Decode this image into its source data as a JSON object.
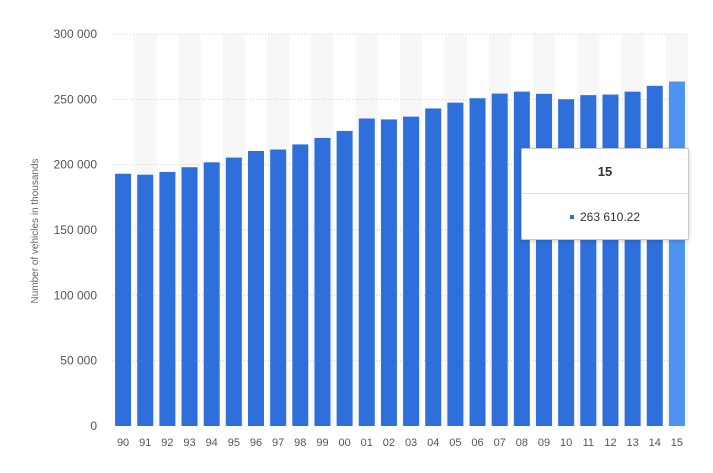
{
  "chart_data": {
    "type": "bar",
    "title": "",
    "xlabel": "",
    "ylabel": "Number of vehicles in thousands",
    "categories": [
      "90",
      "91",
      "92",
      "93",
      "94",
      "95",
      "96",
      "97",
      "98",
      "99",
      "00",
      "01",
      "02",
      "03",
      "04",
      "05",
      "06",
      "07",
      "08",
      "09",
      "10",
      "11",
      "12",
      "13",
      "14",
      "15"
    ],
    "values": [
      193057,
      192314,
      194427,
      198045,
      201802,
      205427,
      210441,
      211580,
      215497,
      220461,
      225821,
      235331,
      234624,
      236760,
      243023,
      247421,
      250845,
      254403,
      255918,
      254213,
      250070,
      253216,
      253639,
      255876,
      260351,
      263610.22
    ],
    "ylim": [
      0,
      300000
    ],
    "yticks": [
      0,
      50000,
      100000,
      150000,
      200000,
      250000,
      300000
    ],
    "ytick_labels": [
      "0",
      "50 000",
      "100 000",
      "150 000",
      "200 000",
      "250 000",
      "300 000"
    ],
    "grid": true,
    "bar_color": "#2f6fdc",
    "highlight_color": "#4c93f2",
    "highlight_index": 25,
    "tooltip": {
      "title": "15",
      "value_label": "263 610.22"
    }
  }
}
